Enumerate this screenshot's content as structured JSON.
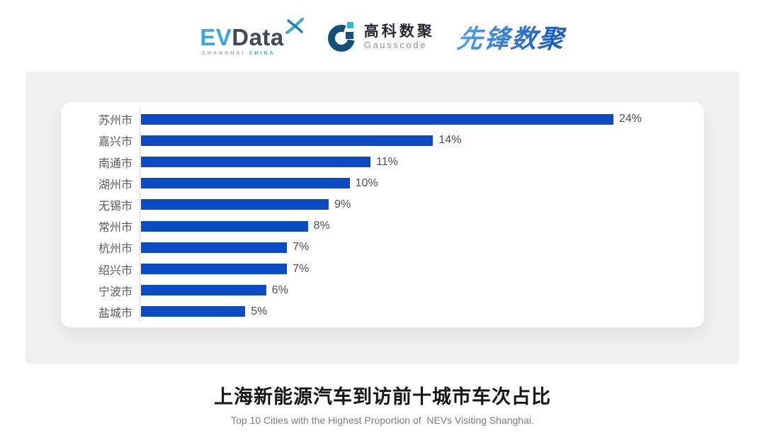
{
  "colors": {
    "bar_blue": "#0d4bc2",
    "axis_gray": "#d9d9d9",
    "label_gray": "#595959",
    "value_gray": "#4d4d4d",
    "panel_gray": "#f0f0f1",
    "title_black": "#161616",
    "subtitle_gray": "#7e7e7e",
    "ev_cyan": "#38a9dc",
    "ev_dark": "#3e4a55",
    "ev_sub_gray": "#a3a8ad",
    "gauss_navy": "#15507c",
    "gauss_teal": "#2bbfc9",
    "gauss_text_dark": "#26292e",
    "gauss_text_gray": "#8d9296",
    "xf_blue_light": "#55a2e4",
    "xf_blue_dark": "#1c5ec4"
  },
  "header": {
    "evdata": {
      "ev": "EV",
      "data": "Data",
      "sub_left": "SHANGHAI",
      "sub_right": "CHINA"
    },
    "gausscode": {
      "cn": "高科数聚",
      "en": "Gausscode"
    },
    "xianfeng": {
      "text": "先锋数聚"
    }
  },
  "chart_data": {
    "type": "bar",
    "orientation": "horizontal",
    "categories": [
      "苏州市",
      "嘉兴市",
      "南通市",
      "湖州市",
      "无锡市",
      "常州市",
      "杭州市",
      "绍兴市",
      "宁波市",
      "盐城市"
    ],
    "values": [
      24,
      14,
      11,
      10,
      9,
      8,
      7,
      7,
      6,
      5
    ],
    "value_labels": [
      "24%",
      "14%",
      "11%",
      "10%",
      "9%",
      "8%",
      "7%",
      "7%",
      "6%",
      "5%"
    ],
    "unit": "%",
    "xlim": [
      0,
      24
    ],
    "grid": false,
    "legend": false,
    "bar_color": "#0d4bc2",
    "title": "上海新能源汽车到访前十城市车次占比",
    "subtitle": "Top 10 Cities with the Highest Proportion of  NEVs Visiting Shanghai."
  },
  "footer": {
    "title": "上海新能源汽车到访前十城市车次占比",
    "subtitle": "Top 10 Cities with the Highest Proportion of  NEVs Visiting Shanghai."
  }
}
